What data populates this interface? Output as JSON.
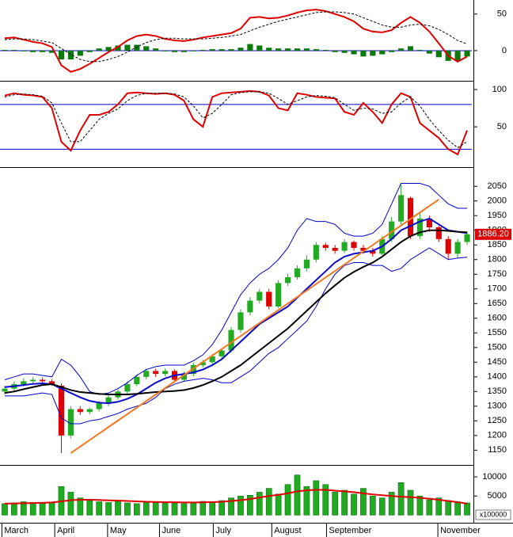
{
  "chart_data": [
    {
      "type": "line",
      "xlim": [
        -0.5,
        49.5
      ],
      "ylim": [
        -39,
        67
      ],
      "yticks": [
        50,
        0
      ],
      "hlines": [
        0
      ],
      "hline_color": "#0000cc",
      "series": [
        {
          "style": "bar",
          "color": "#0a7a0a",
          "values": [
            1,
            1,
            -1,
            -2,
            -2,
            -3,
            -12,
            -12,
            -7,
            -2,
            3,
            5,
            7,
            8,
            8,
            6,
            3,
            -1,
            -2,
            -2,
            -1,
            1,
            2,
            2,
            2,
            4,
            9,
            7,
            4,
            3,
            3,
            3,
            3,
            2,
            1,
            -2,
            -3,
            -5,
            -8,
            -7,
            -5,
            -2,
            3,
            6,
            1,
            -4,
            -9,
            -14,
            -14,
            -8
          ]
        },
        {
          "style": "line",
          "color": "#e00000",
          "values": [
            17,
            18,
            15,
            12,
            10,
            5,
            -20,
            -29,
            -25,
            -18,
            -10,
            -2,
            5,
            14,
            20,
            22,
            20,
            16,
            14,
            13,
            15,
            18,
            20,
            22,
            24,
            30,
            45,
            46,
            44,
            45,
            48,
            52,
            55,
            56,
            54,
            50,
            46,
            40,
            30,
            26,
            25,
            28,
            38,
            46,
            38,
            26,
            10,
            -7,
            -15,
            -8
          ]
        },
        {
          "style": "dashed",
          "color": "#000000",
          "values": [
            15,
            16,
            16,
            15,
            13,
            11,
            3,
            -5,
            -12,
            -15,
            -15,
            -12,
            -8,
            -2,
            5,
            11,
            15,
            17,
            17,
            16,
            16,
            16,
            17,
            18,
            20,
            22,
            27,
            32,
            36,
            40,
            43,
            46,
            49,
            52,
            53,
            53,
            52,
            50,
            45,
            40,
            35,
            32,
            32,
            35,
            36,
            34,
            29,
            22,
            14,
            9
          ]
        }
      ]
    },
    {
      "type": "line",
      "xlim": [
        -0.5,
        49.5
      ],
      "ylim": [
        -3,
        108.5
      ],
      "yticks": [
        100,
        50
      ],
      "hlines": [
        80,
        20
      ],
      "hline_color": "#0000cc",
      "series": [
        {
          "style": "line",
          "color": "#e00000",
          "values": [
            92,
            95,
            93,
            92,
            90,
            75,
            30,
            18,
            45,
            66,
            66,
            70,
            80,
            95,
            96,
            95,
            94,
            95,
            93,
            85,
            60,
            50,
            90,
            95,
            96,
            97,
            98,
            97,
            92,
            75,
            72,
            95,
            93,
            90,
            89,
            88,
            70,
            66,
            82,
            70,
            55,
            80,
            95,
            90,
            55,
            45,
            35,
            20,
            13,
            45
          ]
        },
        {
          "style": "dashed",
          "color": "#000000",
          "values": [
            90,
            93,
            94,
            93,
            91,
            82,
            55,
            30,
            30,
            45,
            60,
            68,
            74,
            85,
            92,
            95,
            95,
            95,
            94,
            90,
            78,
            62,
            68,
            80,
            93,
            96,
            97,
            97,
            95,
            88,
            80,
            85,
            90,
            92,
            91,
            89,
            80,
            72,
            75,
            74,
            68,
            70,
            82,
            90,
            78,
            60,
            45,
            32,
            22,
            30
          ]
        }
      ]
    },
    {
      "type": "candlestick",
      "xlim": [
        -0.5,
        49.5
      ],
      "ylim": [
        1105,
        2110
      ],
      "yticks": [
        1150,
        1200,
        1250,
        1300,
        1350,
        1400,
        1450,
        1500,
        1550,
        1600,
        1650,
        1700,
        1750,
        1800,
        1850,
        1900,
        1950,
        2000,
        2050
      ],
      "up_color": "#22aa22",
      "down_color": "#dd0000",
      "open": [
        1350,
        1360,
        1375,
        1385,
        1390,
        1385,
        1370,
        1200,
        1290,
        1280,
        1290,
        1310,
        1330,
        1350,
        1375,
        1400,
        1420,
        1410,
        1420,
        1390,
        1410,
        1440,
        1450,
        1470,
        1490,
        1560,
        1620,
        1660,
        1690,
        1640,
        1720,
        1740,
        1770,
        1800,
        1850,
        1840,
        1830,
        1860,
        1840,
        1830,
        1820,
        1870,
        1930,
        2010,
        1880,
        1940,
        1910,
        1870,
        1820,
        1860
      ],
      "high": [
        1370,
        1385,
        1395,
        1400,
        1398,
        1392,
        1378,
        1300,
        1300,
        1295,
        1318,
        1338,
        1358,
        1385,
        1408,
        1428,
        1428,
        1428,
        1425,
        1418,
        1448,
        1458,
        1478,
        1498,
        1570,
        1630,
        1672,
        1700,
        1700,
        1730,
        1752,
        1780,
        1815,
        1860,
        1858,
        1850,
        1870,
        1865,
        1850,
        1840,
        1880,
        1945,
        2055,
        2015,
        1960,
        1950,
        1915,
        1880,
        1870,
        1895
      ],
      "low": [
        1340,
        1352,
        1368,
        1378,
        1380,
        1370,
        1140,
        1190,
        1270,
        1272,
        1282,
        1300,
        1322,
        1342,
        1368,
        1392,
        1400,
        1402,
        1382,
        1385,
        1402,
        1432,
        1442,
        1462,
        1482,
        1550,
        1610,
        1650,
        1630,
        1635,
        1710,
        1732,
        1760,
        1790,
        1830,
        1820,
        1822,
        1830,
        1820,
        1810,
        1815,
        1860,
        1920,
        1870,
        1870,
        1895,
        1860,
        1800,
        1805,
        1850
      ],
      "close": [
        1360,
        1375,
        1385,
        1390,
        1385,
        1375,
        1200,
        1290,
        1280,
        1290,
        1310,
        1330,
        1350,
        1375,
        1400,
        1420,
        1410,
        1420,
        1390,
        1410,
        1440,
        1450,
        1470,
        1490,
        1560,
        1620,
        1660,
        1690,
        1640,
        1720,
        1740,
        1770,
        1800,
        1850,
        1840,
        1830,
        1860,
        1840,
        1830,
        1820,
        1870,
        1930,
        2020,
        1880,
        1940,
        1910,
        1870,
        1820,
        1860,
        1886.2
      ],
      "last_price": {
        "value": 1886.2,
        "label": "1886.20"
      },
      "series": [
        {
          "style": "thin",
          "color": "#0000cc",
          "values": [
            1390,
            1400,
            1410,
            1410,
            1405,
            1400,
            1460,
            1440,
            1400,
            1350,
            1340,
            1345,
            1360,
            1380,
            1405,
            1425,
            1435,
            1440,
            1440,
            1440,
            1455,
            1475,
            1510,
            1560,
            1620,
            1680,
            1720,
            1750,
            1770,
            1800,
            1840,
            1900,
            1940,
            1930,
            1930,
            1920,
            1890,
            1880,
            1880,
            1890,
            1920,
            1990,
            2060,
            2060,
            2060,
            2050,
            2020,
            1990,
            1975,
            1975
          ]
        },
        {
          "style": "thin",
          "color": "#0000cc",
          "values": [
            1335,
            1335,
            1335,
            1340,
            1345,
            1340,
            1260,
            1240,
            1240,
            1250,
            1255,
            1265,
            1275,
            1290,
            1300,
            1310,
            1330,
            1360,
            1375,
            1385,
            1390,
            1395,
            1390,
            1380,
            1380,
            1400,
            1420,
            1450,
            1480,
            1500,
            1530,
            1560,
            1590,
            1640,
            1700,
            1750,
            1780,
            1790,
            1790,
            1780,
            1780,
            1760,
            1770,
            1800,
            1820,
            1840,
            1820,
            1800,
            1805,
            1808
          ]
        },
        {
          "style": "line",
          "color": "#0a0acc",
          "values": [
            1365,
            1368,
            1372,
            1376,
            1378,
            1375,
            1360,
            1345,
            1330,
            1318,
            1312,
            1310,
            1315,
            1325,
            1340,
            1360,
            1380,
            1395,
            1405,
            1410,
            1415,
            1425,
            1440,
            1460,
            1490,
            1520,
            1550,
            1580,
            1600,
            1620,
            1640,
            1670,
            1700,
            1730,
            1760,
            1790,
            1810,
            1820,
            1825,
            1830,
            1845,
            1870,
            1900,
            1915,
            1930,
            1940,
            1920,
            1900,
            1895,
            1890
          ]
        },
        {
          "style": "line",
          "color": "#000000",
          "values": [
            1345,
            1350,
            1358,
            1365,
            1372,
            1375,
            1365,
            1355,
            1348,
            1345,
            1342,
            1340,
            1340,
            1340,
            1342,
            1345,
            1348,
            1350,
            1352,
            1355,
            1362,
            1372,
            1385,
            1400,
            1420,
            1440,
            1465,
            1490,
            1515,
            1540,
            1565,
            1595,
            1625,
            1655,
            1685,
            1712,
            1738,
            1758,
            1775,
            1790,
            1810,
            1835,
            1860,
            1880,
            1893,
            1900,
            1900,
            1898,
            1895,
            1893
          ]
        },
        {
          "style": "line",
          "color": "#f07820",
          "x": [
            7,
            46
          ],
          "values": [
            1140,
            2005
          ]
        }
      ]
    },
    {
      "type": "bar",
      "xlim": [
        -0.5,
        49.5
      ],
      "ylim": [
        -960,
        12500
      ],
      "yticks": [
        10000,
        5000
      ],
      "color": "#22aa22",
      "unit_label": "x100000",
      "values": [
        3000,
        3200,
        3500,
        3300,
        3000,
        3400,
        7500,
        6000,
        4500,
        3800,
        3500,
        3300,
        3600,
        3200,
        3000,
        3400,
        3300,
        3100,
        3200,
        3000,
        3400,
        3600,
        3500,
        3800,
        4500,
        5000,
        5200,
        6000,
        7000,
        5500,
        8000,
        10500,
        7500,
        9000,
        8000,
        6000,
        6500,
        5500,
        7000,
        5000,
        4500,
        6000,
        8500,
        6500,
        5000,
        4000,
        4500,
        3800,
        3500,
        3200
      ],
      "series": [
        {
          "style": "line",
          "color": "#e00000",
          "values": [
            3000,
            3050,
            3100,
            3150,
            3200,
            3300,
            3600,
            3900,
            4000,
            4000,
            3950,
            3850,
            3800,
            3700,
            3600,
            3500,
            3450,
            3400,
            3350,
            3300,
            3300,
            3350,
            3400,
            3500,
            3700,
            3900,
            4200,
            4600,
            5000,
            5300,
            5700,
            6200,
            6500,
            6600,
            6600,
            6400,
            6200,
            6000,
            5700,
            5400,
            5200,
            5000,
            4800,
            4700,
            4500,
            4300,
            4000,
            3700,
            3400,
            3000
          ]
        }
      ],
      "xticks": [
        {
          "value": -0.3,
          "label": "March"
        },
        {
          "value": 5.3,
          "label": "April"
        },
        {
          "value": 10.9,
          "label": "May"
        },
        {
          "value": 16.4,
          "label": "June"
        },
        {
          "value": 22.1,
          "label": "July"
        },
        {
          "value": 28.3,
          "label": "August"
        },
        {
          "value": 34.1,
          "label": "September"
        },
        {
          "value": 45.9,
          "label": "November"
        }
      ]
    }
  ]
}
